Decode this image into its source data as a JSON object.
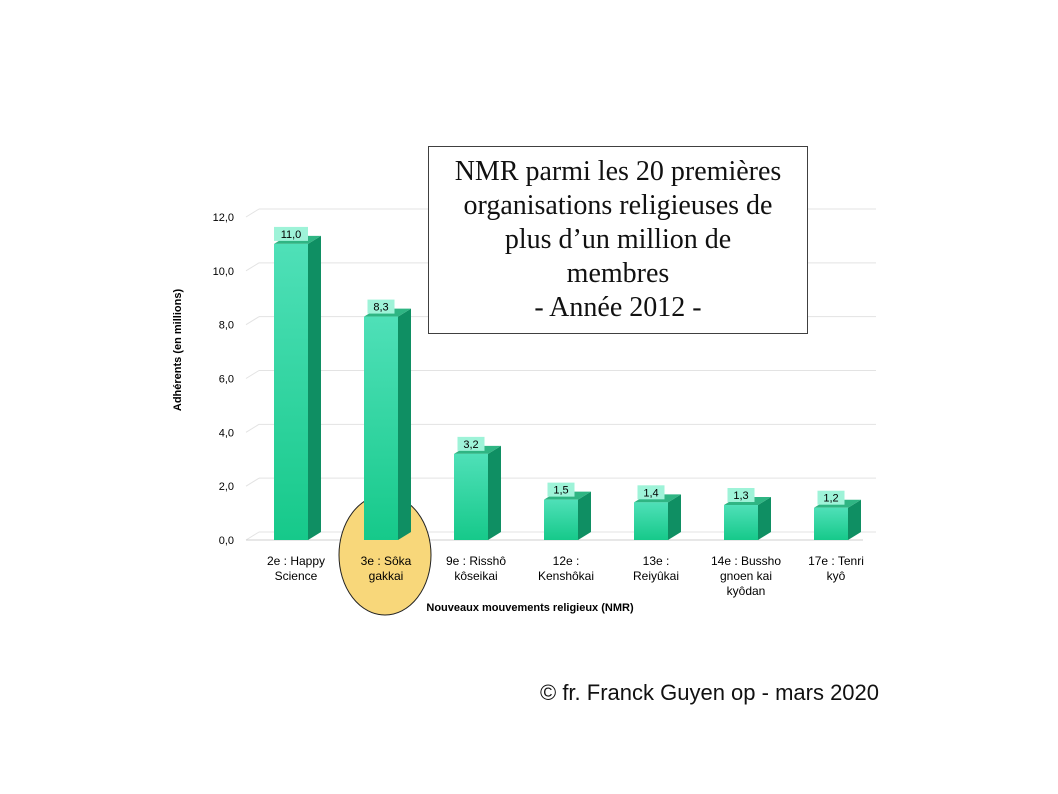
{
  "title": {
    "lines": [
      "NMR parmi les 20 premières",
      "organisations religieuses de",
      "plus d’un million de",
      "membres",
      "- Année 2012 -"
    ]
  },
  "copyright": "© fr. Franck Guyen op - mars 2020",
  "colors": {
    "bar_front_top": "#4fe0b8",
    "bar_front_bottom": "#16c98a",
    "bar_side": "#0f8f63",
    "bar_top": "#2fb583",
    "label_bg": "#9ef3d8",
    "grid": "#e3e3e3",
    "highlight_fill": "#f8d77a",
    "highlight_stroke": "#222222"
  },
  "chart_data": {
    "type": "bar",
    "xlabel": "Nouveaux mouvements religieux (NMR)",
    "ylabel": "Adhérents (en millions)",
    "ylim": [
      0,
      12
    ],
    "yticks": [
      "0,0",
      "2,0",
      "4,0",
      "6,0",
      "8,0",
      "10,0",
      "12,0"
    ],
    "grid": true,
    "categories": [
      [
        "2e : Happy",
        "Science"
      ],
      [
        "3e : Sôka",
        "gakkai"
      ],
      [
        "9e : Risshô",
        "kôseikai"
      ],
      [
        "12e :",
        "Kenshôkai"
      ],
      [
        "13e :",
        "Reiyûkai"
      ],
      [
        "14e : Bussho",
        "gnoen kai",
        "kyôdan"
      ],
      [
        "17e : Tenri",
        "kyô"
      ]
    ],
    "values": [
      11.0,
      8.3,
      3.2,
      1.5,
      1.4,
      1.3,
      1.2
    ],
    "data_labels": [
      "11,0",
      "8,3",
      "3,2",
      "1,5",
      "1,4",
      "1,3",
      "1,2"
    ],
    "highlight_category_index": 1
  }
}
